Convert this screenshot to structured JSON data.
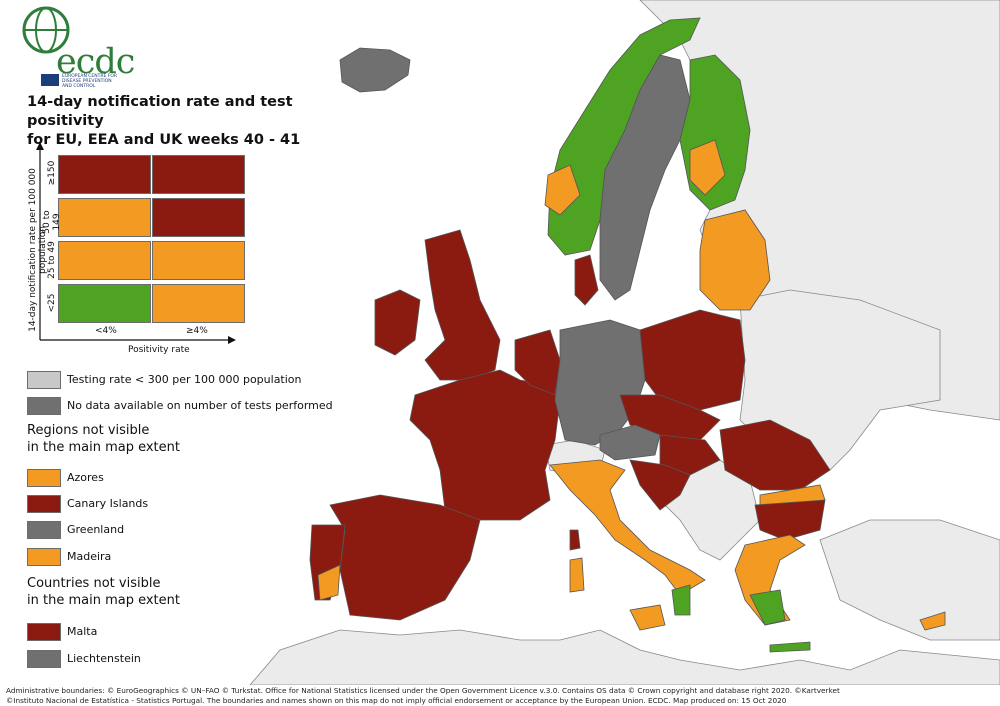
{
  "logo": {
    "text": "ecdc",
    "subtitle": "EUROPEAN CENTRE FOR DISEASE PREVENTION AND CONTROL"
  },
  "title": {
    "line1": "14-day notification rate and test positivity",
    "line2": "for EU, EEA and UK weeks 40 - 41"
  },
  "colors": {
    "dark_red": "#8b1a10",
    "orange": "#f39a22",
    "green": "#4ea322",
    "dark_grey": "#707070",
    "light_grey": "#c8c8c8",
    "non_eu": "#ebebeb",
    "sea": "#ffffff",
    "border": "#555555"
  },
  "matrix": {
    "y_title": "14-day notification rate per 100 000 population",
    "x_title": "Positivity rate",
    "x_ticks": [
      "<4%",
      "≥4%"
    ],
    "y_ticks": [
      "≥150",
      "50 to 149",
      "25 to 49",
      "<25"
    ],
    "cells": [
      [
        "dark_red",
        "dark_red"
      ],
      [
        "orange",
        "dark_red"
      ],
      [
        "orange",
        "orange"
      ],
      [
        "green",
        "orange"
      ]
    ]
  },
  "legend": {
    "testing_rate": "Testing rate < 300 per 100 000 population",
    "no_data": "No data available on number of tests performed"
  },
  "regions_title": {
    "line1": "Regions not visible",
    "line2": "in the main map extent"
  },
  "regions": [
    {
      "label": "Azores",
      "color": "orange"
    },
    {
      "label": "Canary Islands",
      "color": "dark_red"
    },
    {
      "label": "Greenland",
      "color": "dark_grey"
    },
    {
      "label": "Madeira",
      "color": "orange"
    }
  ],
  "countries_title": {
    "line1": "Countries not visible",
    "line2": "in the main map extent"
  },
  "countries": [
    {
      "label": "Malta",
      "color": "dark_red"
    },
    {
      "label": "Liechtenstein",
      "color": "dark_grey"
    }
  ],
  "footer": {
    "line1": "Administrative boundaries: © EuroGeographics © UN–FAO © Turkstat. Office for National Statistics licensed under the Open Government Licence v.3.0. Contains OS data © Crown copyright and database right 2020. ©Kartverket",
    "line2": "©Instituto Nacional de Estatística - Statistics Portugal. The boundaries and names shown on this map do not imply official endorsement or acceptance by the European Union. ECDC. Map produced on: 15 Oct 2020"
  }
}
